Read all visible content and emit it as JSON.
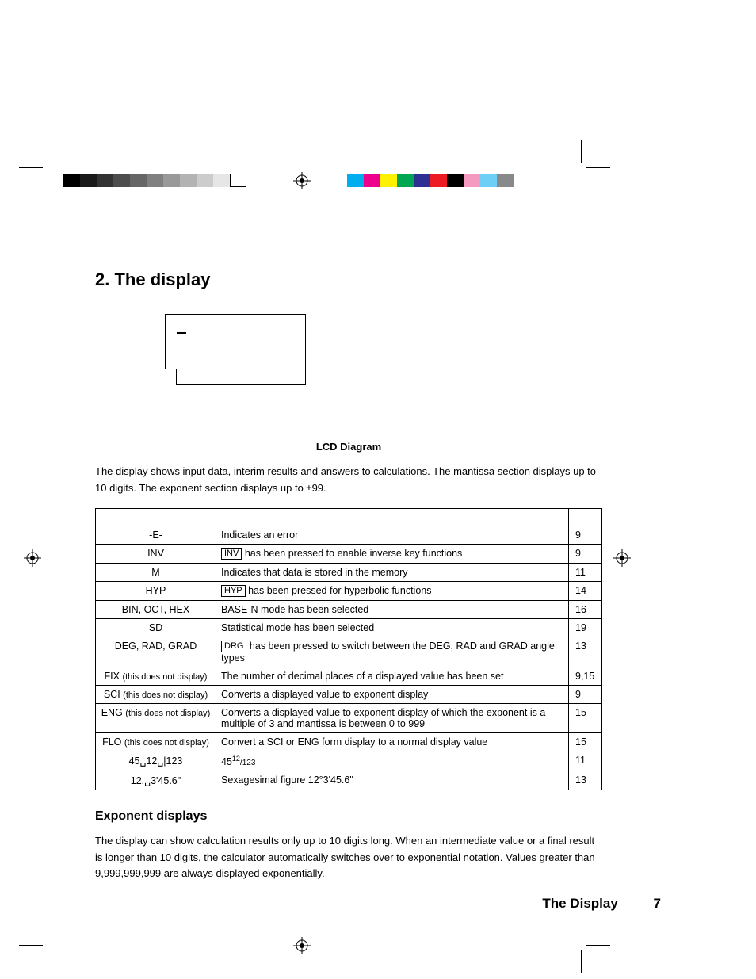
{
  "marks": {
    "grayscale": [
      "#000000",
      "#1a1a1a",
      "#333333",
      "#4d4d4d",
      "#666666",
      "#808080",
      "#999999",
      "#b3b3b3",
      "#cccccc",
      "#e6e6e6",
      "#ffffff"
    ],
    "colors": [
      "#00aeef",
      "#ec008c",
      "#fff200",
      "#00a651",
      "#2e3192",
      "#ed1c24",
      "#000000",
      "#f49ac1",
      "#6dcff6",
      "#898989"
    ]
  },
  "section": {
    "number": "2.",
    "title": "The display"
  },
  "lcd": {
    "caption": "LCD Diagram"
  },
  "intro": "The display shows input data, interim results and answers to calculations.  The mantissa section displays up to 10 digits.  The exponent section displays up to ±99.",
  "table": {
    "rows": [
      {
        "c1": "-E-",
        "c2_type": "text",
        "c2": "Indicates an error",
        "c3": "9"
      },
      {
        "c1": "INV",
        "c2_type": "key",
        "key": "INV",
        "c2": " has been pressed to enable inverse key functions",
        "c3": "9"
      },
      {
        "c1": "M",
        "c2_type": "text",
        "c2": "Indicates that data is stored in the memory",
        "c3": "11"
      },
      {
        "c1": "HYP",
        "c2_type": "key",
        "key": "HYP",
        "c2": " has been pressed for hyperbolic functions",
        "c3": "14"
      },
      {
        "c1": "BIN, OCT, HEX",
        "c2_type": "text",
        "c2": "BASE-N mode has been selected",
        "c3": "16"
      },
      {
        "c1": "SD",
        "c2_type": "text",
        "c2": "Statistical mode has been selected",
        "c3": "19"
      },
      {
        "c1": "DEG, RAD, GRAD",
        "c2_type": "key",
        "key": "DRG",
        "c2": " has been pressed to switch between the DEG, RAD and GRAD angle types",
        "c3": "13"
      },
      {
        "c1": "FIX",
        "c1_note": "(this does not display)",
        "c2_type": "text",
        "c2": "The number of decimal places of a displayed value has been set",
        "c3": "9,15"
      },
      {
        "c1": "SCI",
        "c1_note": "(this does not display)",
        "c2_type": "text",
        "c2": "Converts a displayed value to exponent display",
        "c3": "9"
      },
      {
        "c1": "ENG",
        "c1_note": "(this does not display)",
        "c2_type": "text",
        "c2": "Converts a displayed value to exponent display of which the exponent is a multiple of 3 and mantissa is between 0 to 999",
        "c3": "15"
      },
      {
        "c1": "FLO",
        "c1_note": "(this does not display)",
        "c2_type": "text",
        "c2": "Convert a SCI or ENG form display to a normal display value",
        "c3": "15"
      },
      {
        "c1": "45␣12␣|123",
        "c2_type": "frac",
        "c2_base": "45",
        "c2_sup": "12",
        "c2_sub": "/123",
        "c3": "11"
      },
      {
        "c1": "12.␣3'45.6\"",
        "c2_type": "text",
        "c2": "Sexagesimal figure 12°3'45.6\"",
        "c3": "13"
      }
    ]
  },
  "exponent": {
    "heading": "Exponent displays",
    "body": "The display can show calculation results only up to 10 digits long.  When an intermediate value or a final result is longer than 10 digits, the calculator automatically switches over to exponential notation.  Values greater than 9,999,999,999 are always displayed exponentially."
  },
  "footer": {
    "label": "The Display",
    "page": "7"
  }
}
